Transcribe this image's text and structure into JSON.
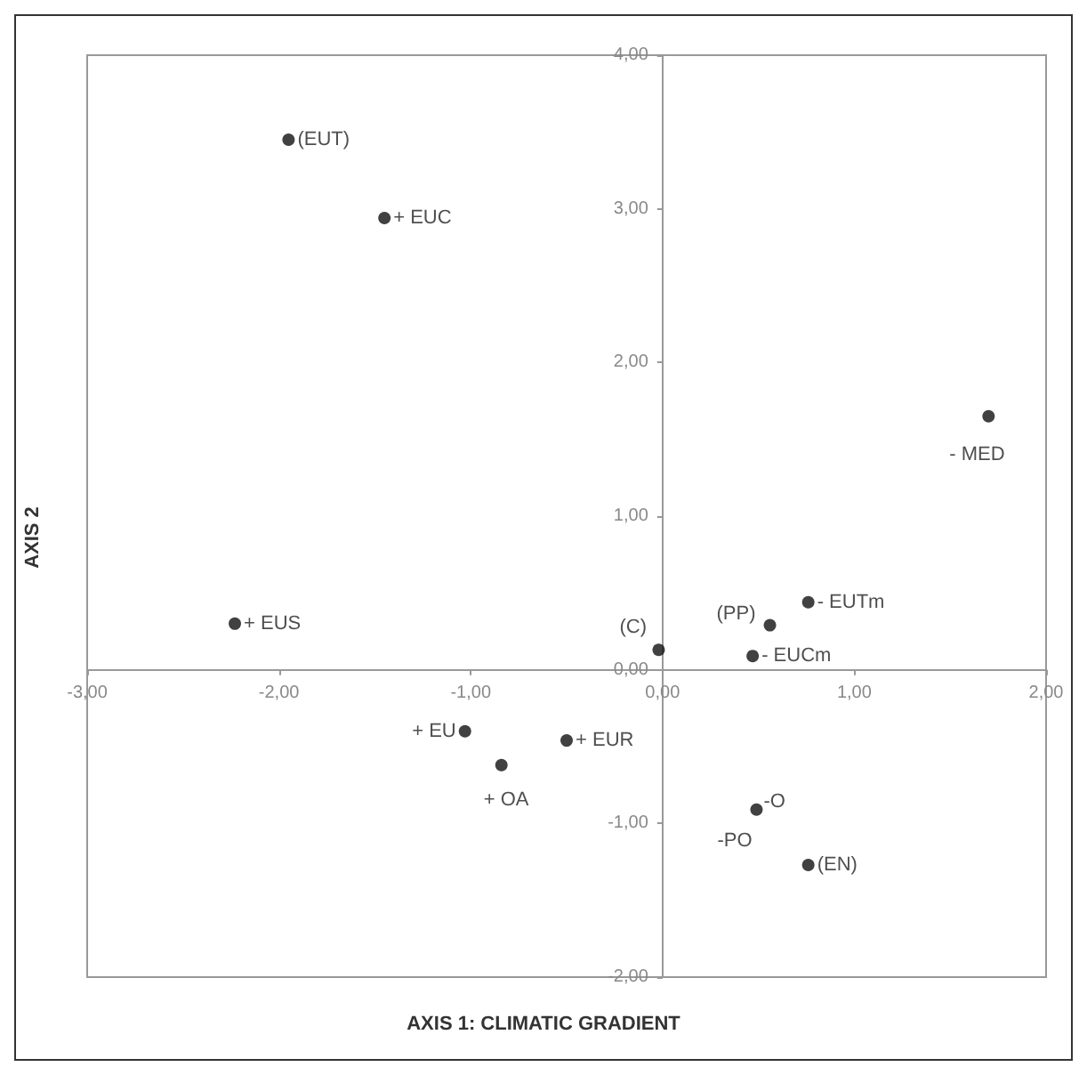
{
  "chart_data": {
    "type": "scatter",
    "xlabel": "AXIS 1: CLIMATIC GRADIENT",
    "ylabel": "AXIS 2",
    "x": [
      -1.95,
      -1.45,
      -2.23,
      1.7,
      -0.02,
      0.56,
      0.76,
      0.47,
      -1.03,
      -0.84,
      -0.5,
      0.49,
      0.76
    ],
    "values": [
      3.45,
      2.94,
      0.3,
      1.65,
      0.13,
      0.29,
      0.44,
      0.09,
      -0.4,
      -0.62,
      -0.46,
      -0.91,
      -1.27
    ],
    "color": "#111111",
    "marker": "circle",
    "annotations": [
      {
        "text": "(EUT)",
        "x": -1.95,
        "y": 3.45
      },
      {
        "text": "+ EUC",
        "x": -1.45,
        "y": 2.94
      },
      {
        "text": "+ EUS",
        "x": -2.23,
        "y": 0.3
      },
      {
        "text": "- MED",
        "x": 1.7,
        "y": 1.65
      },
      {
        "text": "(C)",
        "x": -0.02,
        "y": 0.13
      },
      {
        "text": "(PP)",
        "x": 0.56,
        "y": 0.29
      },
      {
        "text": "- EUTm",
        "x": 0.76,
        "y": 0.44
      },
      {
        "text": "- EUCm",
        "x": 0.47,
        "y": 0.09
      },
      {
        "text": "+ EU",
        "x": -1.03,
        "y": -0.4
      },
      {
        "text": "+ OA",
        "x": -0.84,
        "y": -0.62
      },
      {
        "text": "+ EUR",
        "x": -0.5,
        "y": -0.46
      },
      {
        "text": "-O",
        "x": 0.49,
        "y": -0.91
      },
      {
        "text": "-PO",
        "x": 0.49,
        "y": -0.91
      },
      {
        "text": "(EN)",
        "x": 0.76,
        "y": -1.27
      }
    ],
    "xlim": [
      -3,
      2
    ],
    "xticks": [
      {
        "value": -3,
        "label": "-3,00"
      },
      {
        "value": -2,
        "label": "-2,00"
      },
      {
        "value": -1,
        "label": "-1,00"
      },
      {
        "value": 0,
        "label": "0,00"
      },
      {
        "value": 1,
        "label": "1,00"
      },
      {
        "value": 2,
        "label": "2,00"
      }
    ],
    "ylim": [
      -2,
      4
    ],
    "yticks": [
      {
        "value": -2,
        "label": "-2,00"
      },
      {
        "value": -1,
        "label": "-1,00"
      },
      {
        "value": 0,
        "label": "0,00"
      },
      {
        "value": 1,
        "label": "1,00"
      },
      {
        "value": 2,
        "label": "2,00"
      },
      {
        "value": 3,
        "label": "3,00"
      },
      {
        "value": 4,
        "label": "4,00"
      }
    ]
  }
}
